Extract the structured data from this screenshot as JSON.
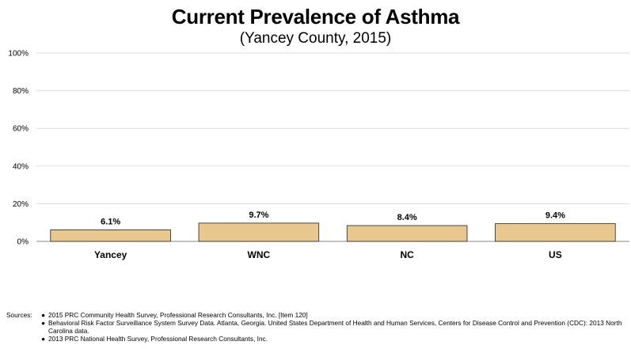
{
  "chart_data": {
    "type": "bar",
    "title": "Current Prevalence of Asthma",
    "subtitle": "(Yancey County, 2015)",
    "categories": [
      "Yancey",
      "WNC",
      "NC",
      "US"
    ],
    "values": [
      6.1,
      9.7,
      8.4,
      9.4
    ],
    "value_labels": [
      "6.1%",
      "9.7%",
      "8.4%",
      "9.4%"
    ],
    "ylim": [
      0,
      100
    ],
    "yticks": [
      0,
      20,
      40,
      60,
      80,
      100
    ],
    "ytick_labels": [
      "0%",
      "20%",
      "40%",
      "60%",
      "80%",
      "100%"
    ],
    "xlabel": "",
    "ylabel": "",
    "grid": true,
    "bar_color": "#e8c88e",
    "bar_border_color": "#222222",
    "grid_color": "#dddddd"
  },
  "sources": {
    "label": "Sources:",
    "bullet": "●",
    "items": [
      "2015 PRC Community Health Survey, Professional Research Consultants, Inc.  [Item 120]",
      "Behavioral Risk Factor Surveillance System Survey Data.  Atlanta, Georgia.  United States Department of Health and Human Services, Centers for Disease Control and Prevention (CDC): 2013 North Carolina data.",
      "2013 PRC National Health Survey, Professional Research Consultants, Inc."
    ]
  }
}
